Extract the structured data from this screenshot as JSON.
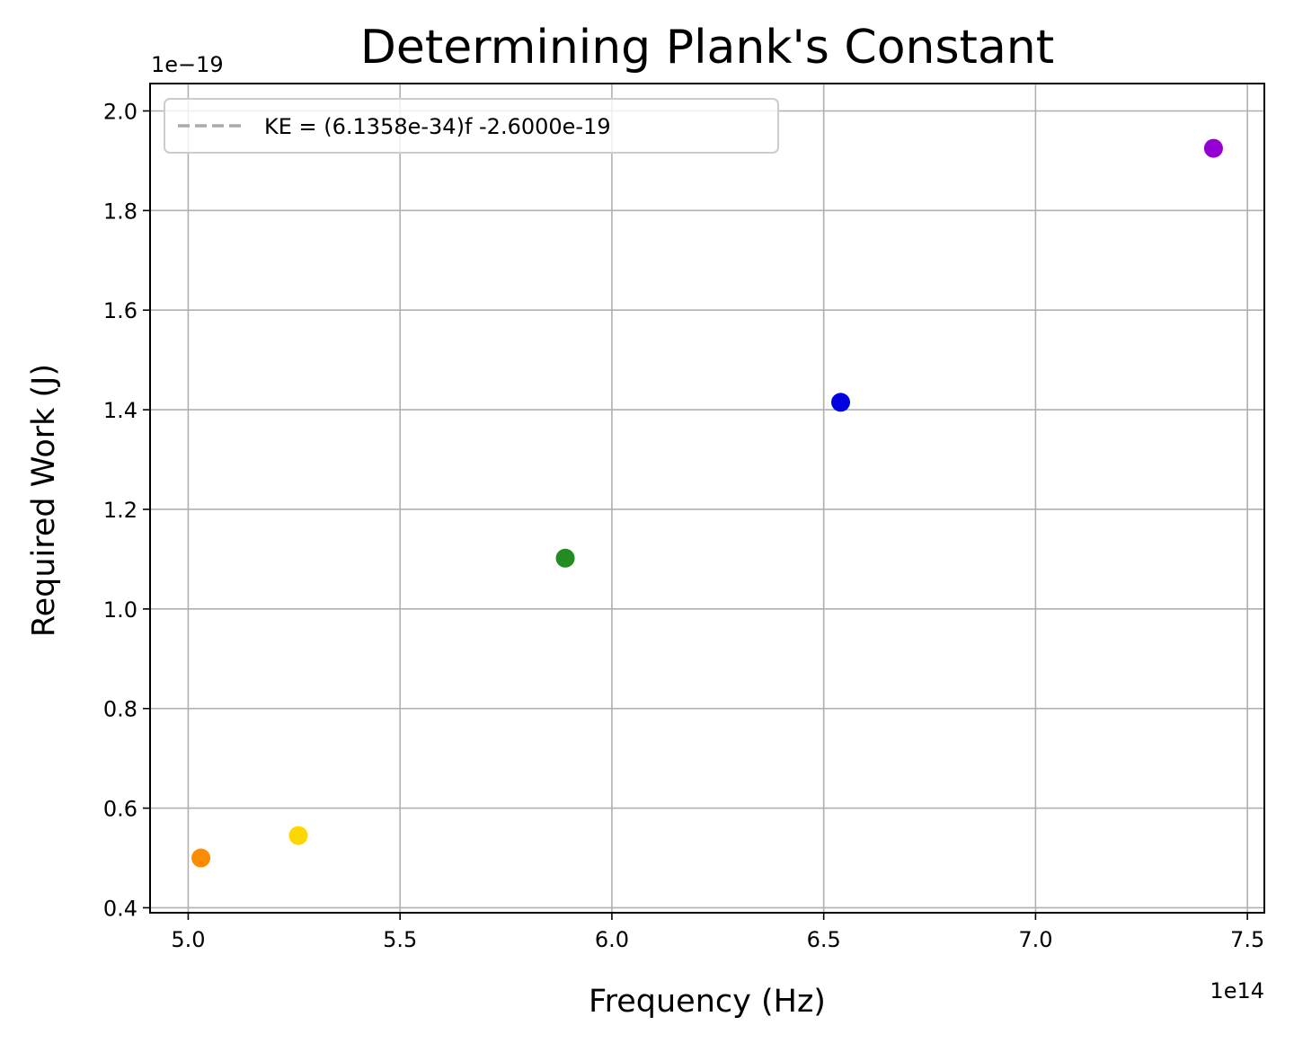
{
  "chart_data": {
    "type": "scatter",
    "title": "Determining Plank's Constant",
    "xlabel": "Frequency (Hz)",
    "ylabel": "Required Work (J)",
    "x_offset_label": "1e14",
    "y_offset_label": "1e−19",
    "xlim": [
      4.91,
      7.54
    ],
    "ylim": [
      0.39,
      2.055
    ],
    "x_ticks": [
      5.0,
      5.5,
      6.0,
      6.5,
      7.0,
      7.5
    ],
    "x_tick_labels": [
      "5.0",
      "5.5",
      "6.0",
      "6.5",
      "7.0",
      "7.5"
    ],
    "y_ticks": [
      0.4,
      0.6,
      0.8,
      1.0,
      1.2,
      1.4,
      1.6,
      1.8,
      2.0
    ],
    "y_tick_labels": [
      "0.4",
      "0.6",
      "0.8",
      "1.0",
      "1.2",
      "1.4",
      "1.6",
      "1.8",
      "2.0"
    ],
    "grid": true,
    "legend_position": "top-left",
    "points": [
      {
        "x": 5.03,
        "y": 0.5,
        "color": "#ff8c00"
      },
      {
        "x": 5.26,
        "y": 0.545,
        "color": "#ffd700"
      },
      {
        "x": 5.89,
        "y": 1.102,
        "color": "#228b22"
      },
      {
        "x": 6.54,
        "y": 1.415,
        "color": "#0000e0"
      },
      {
        "x": 7.42,
        "y": 1.925,
        "color": "#9400d3"
      }
    ],
    "fit_line": {
      "label": "KE = (6.1358e-34)f -2.6000e-19",
      "slope": 0.61358,
      "intercept": -2.6,
      "x_range": [
        5.03,
        7.42
      ],
      "color": "#aaaaaa",
      "style": "dashed"
    }
  }
}
